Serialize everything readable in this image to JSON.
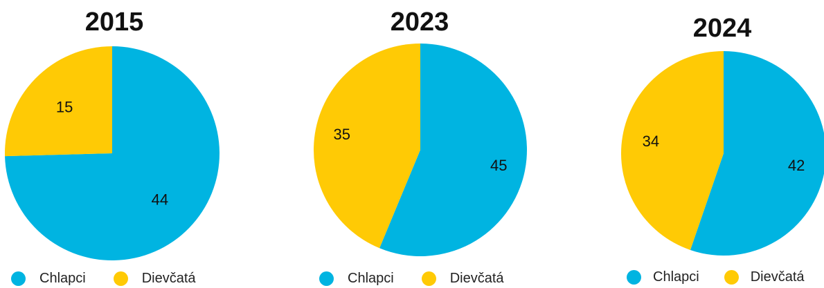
{
  "colors": {
    "chlapci": "#00B4E1",
    "dievcata": "#FFCA05"
  },
  "chart_data": [
    {
      "type": "pie",
      "title": "2015",
      "categories": [
        "Chlapci",
        "Dievčatá"
      ],
      "values": [
        44,
        15
      ],
      "data_labels": [
        "44",
        "15"
      ],
      "legend": [
        "Chlapci",
        "Dievčatá"
      ],
      "legend_position": "bottom"
    },
    {
      "type": "pie",
      "title": "2023",
      "categories": [
        "Chlapci",
        "Dievčatá"
      ],
      "values": [
        45,
        35
      ],
      "data_labels": [
        "45",
        "35"
      ],
      "legend": [
        "Chlapci",
        "Dievčatá"
      ],
      "legend_position": "bottom"
    },
    {
      "type": "pie",
      "title": "2024",
      "categories": [
        "Chlapci",
        "Dievčatá"
      ],
      "values": [
        42,
        34
      ],
      "data_labels": [
        "42",
        "34"
      ],
      "legend": [
        "Chlapci",
        "Dievčatá"
      ],
      "legend_position": "bottom"
    }
  ]
}
